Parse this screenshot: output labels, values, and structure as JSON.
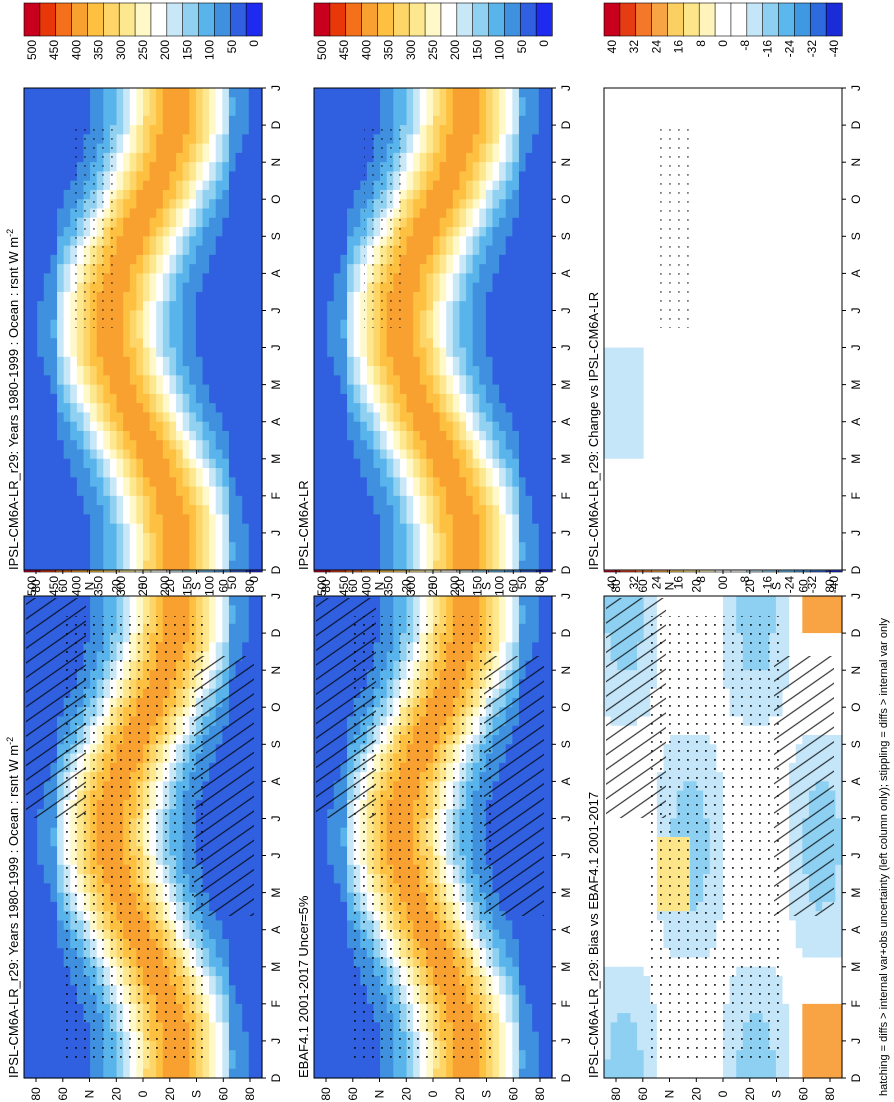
{
  "footnote": "hatching = diffs > internal var+obs uncertainty (left column only); stippling = diffs > internal var only",
  "chart_data": [
    {
      "type": "heatmap",
      "panel": "left-top",
      "title": "IPSL-CM6A-LR_r29: Years 1980-1999 : Ocean : rsnt W m",
      "title_sup": "-2",
      "x": [
        "D",
        "J",
        "F",
        "M",
        "A",
        "M",
        "J",
        "J",
        "A",
        "S",
        "O",
        "N",
        "D",
        "J"
      ],
      "y": [
        "80",
        "60",
        "N",
        "20",
        "0",
        "20",
        "S",
        "60",
        "80"
      ],
      "colorbar": [
        "500",
        "450",
        "400",
        "350",
        "300",
        "250",
        "200",
        "150",
        "100",
        "50",
        "0"
      ],
      "palette": "absolute"
    },
    {
      "type": "heatmap",
      "panel": "right-top",
      "title": "IPSL-CM6A-LR_r29: Years 1980-1999 : Ocean : rsnt W m",
      "title_sup": "-2",
      "x": [
        "D",
        "J",
        "F",
        "M",
        "A",
        "M",
        "J",
        "J",
        "A",
        "S",
        "O",
        "N",
        "D",
        "J"
      ],
      "y": [
        "80",
        "60",
        "N",
        "20",
        "0",
        "20",
        "S",
        "60",
        "80"
      ],
      "colorbar": [
        "500",
        "450",
        "400",
        "350",
        "300",
        "250",
        "200",
        "150",
        "100",
        "50",
        "0"
      ],
      "palette": "absolute"
    },
    {
      "type": "heatmap",
      "panel": "left-middle",
      "title": "EBAF4.1 2001-2017 Uncer=5%",
      "title_sup": "",
      "x": [
        "D",
        "J",
        "F",
        "M",
        "A",
        "M",
        "J",
        "J",
        "A",
        "S",
        "O",
        "N",
        "D",
        "J"
      ],
      "y": [
        "80",
        "60",
        "N",
        "20",
        "0",
        "20",
        "S",
        "60",
        "80"
      ],
      "colorbar": [
        "500",
        "450",
        "400",
        "350",
        "300",
        "250",
        "200",
        "150",
        "100",
        "50",
        "0"
      ],
      "palette": "absolute"
    },
    {
      "type": "heatmap",
      "panel": "right-middle",
      "title": "IPSL-CM6A-LR",
      "title_sup": "",
      "x": [
        "D",
        "J",
        "F",
        "M",
        "A",
        "M",
        "J",
        "J",
        "A",
        "S",
        "O",
        "N",
        "D",
        "J"
      ],
      "y": [
        "80",
        "60",
        "N",
        "20",
        "0",
        "20",
        "S",
        "60",
        "80"
      ],
      "colorbar": [
        "500",
        "450",
        "400",
        "350",
        "300",
        "250",
        "200",
        "150",
        "100",
        "50",
        "0"
      ],
      "palette": "absolute"
    },
    {
      "type": "heatmap",
      "panel": "left-bottom",
      "title": "IPSL-CM6A-LR_r29: Bias vs EBAF4.1 2001-2017",
      "title_sup": "",
      "x": [
        "D",
        "J",
        "F",
        "M",
        "A",
        "M",
        "J",
        "J",
        "A",
        "S",
        "O",
        "N",
        "D",
        "J"
      ],
      "y": [
        "80",
        "60",
        "N",
        "20",
        "0",
        "20",
        "S",
        "60",
        "80"
      ],
      "colorbar": [
        "40",
        "32",
        "24",
        "16",
        "8",
        "0",
        "-8",
        "-16",
        "-24",
        "-32",
        "-40"
      ],
      "palette": "difference"
    },
    {
      "type": "heatmap",
      "panel": "right-bottom",
      "title": "IPSL-CM6A-LR_r29: Change vs IPSL-CM6A-LR",
      "title_sup": "",
      "x": [
        "D",
        "J",
        "F",
        "M",
        "A",
        "M",
        "J",
        "J",
        "A",
        "S",
        "O",
        "N",
        "D",
        "J"
      ],
      "y": [
        "80",
        "60",
        "N",
        "20",
        "0",
        "20",
        "S",
        "60",
        "80"
      ],
      "colorbar": [
        "40",
        "32",
        "24",
        "16",
        "8",
        "0",
        "-8",
        "-16",
        "-24",
        "-32",
        "-40"
      ],
      "palette": "difference"
    }
  ]
}
